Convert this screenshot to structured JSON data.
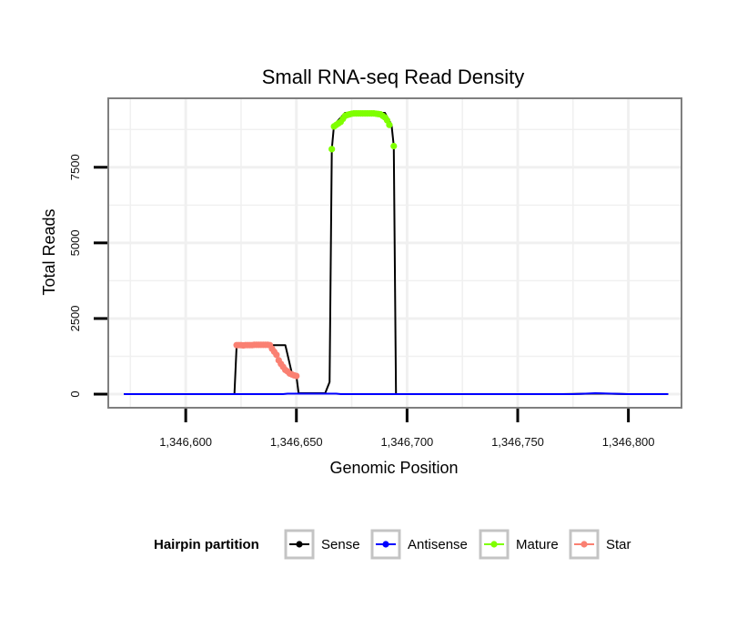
{
  "chart_data": {
    "type": "line",
    "title": "Small RNA-seq Read Density",
    "xlabel": "Genomic Position",
    "ylabel": "Total Reads",
    "xlim": [
      1346565,
      1346824
    ],
    "ylim": [
      -450,
      9780
    ],
    "x_ticks": [
      1346600,
      1346650,
      1346700,
      1346750,
      1346800
    ],
    "x_tick_labels": [
      "1,346,600",
      "1,346,650",
      "1,346,700",
      "1,346,750",
      "1,346,800"
    ],
    "y_ticks": [
      0,
      2500,
      5000,
      7500
    ],
    "y_tick_labels": [
      "0",
      "2500",
      "5000",
      "7500"
    ],
    "grid": true,
    "legend": {
      "title": "Hairpin partition",
      "position": "bottom",
      "items": [
        {
          "label": "Sense",
          "color": "#000000"
        },
        {
          "label": "Antisense",
          "color": "#0000ff"
        },
        {
          "label": "Mature",
          "color": "#7fff00"
        },
        {
          "label": "Star",
          "color": "#fa8072"
        }
      ]
    },
    "series": [
      {
        "name": "Sense",
        "color": "#000000",
        "markers": false,
        "points": [
          [
            1346572,
            0
          ],
          [
            1346622,
            0
          ],
          [
            1346623,
            1620
          ],
          [
            1346645,
            1620
          ],
          [
            1346648,
            680
          ],
          [
            1346650,
            600
          ],
          [
            1346651,
            30
          ],
          [
            1346663,
            30
          ],
          [
            1346665,
            400
          ],
          [
            1346666,
            8100
          ],
          [
            1346667,
            8900
          ],
          [
            1346672,
            9300
          ],
          [
            1346690,
            9300
          ],
          [
            1346693,
            8900
          ],
          [
            1346694,
            8200
          ],
          [
            1346695,
            0
          ],
          [
            1346770,
            0
          ],
          [
            1346787,
            20
          ],
          [
            1346800,
            0
          ],
          [
            1346818,
            0
          ]
        ]
      },
      {
        "name": "Antisense",
        "color": "#0000ff",
        "markers": false,
        "points": [
          [
            1346572,
            0
          ],
          [
            1346644,
            0
          ],
          [
            1346646,
            15
          ],
          [
            1346668,
            15
          ],
          [
            1346670,
            0
          ],
          [
            1346775,
            0
          ],
          [
            1346785,
            30
          ],
          [
            1346800,
            0
          ],
          [
            1346818,
            0
          ]
        ]
      },
      {
        "name": "Mature",
        "color": "#7fff00",
        "markers": true,
        "points": [
          [
            1346666,
            8100
          ],
          [
            1346667,
            8850
          ],
          [
            1346668,
            8900
          ],
          [
            1346669,
            8950
          ],
          [
            1346670,
            9000
          ],
          [
            1346671,
            9100
          ],
          [
            1346672,
            9200
          ],
          [
            1346673,
            9230
          ],
          [
            1346674,
            9250
          ],
          [
            1346675,
            9270
          ],
          [
            1346676,
            9280
          ],
          [
            1346677,
            9280
          ],
          [
            1346678,
            9280
          ],
          [
            1346679,
            9280
          ],
          [
            1346680,
            9280
          ],
          [
            1346681,
            9280
          ],
          [
            1346682,
            9280
          ],
          [
            1346683,
            9280
          ],
          [
            1346684,
            9280
          ],
          [
            1346685,
            9280
          ],
          [
            1346686,
            9270
          ],
          [
            1346687,
            9260
          ],
          [
            1346688,
            9250
          ],
          [
            1346689,
            9200
          ],
          [
            1346690,
            9150
          ],
          [
            1346691,
            9050
          ],
          [
            1346692,
            8900
          ],
          [
            1346694,
            8200
          ]
        ]
      },
      {
        "name": "Star",
        "color": "#fa8072",
        "markers": true,
        "points": [
          [
            1346623,
            1620
          ],
          [
            1346624,
            1620
          ],
          [
            1346625,
            1620
          ],
          [
            1346626,
            1610
          ],
          [
            1346627,
            1620
          ],
          [
            1346628,
            1620
          ],
          [
            1346629,
            1620
          ],
          [
            1346630,
            1620
          ],
          [
            1346631,
            1630
          ],
          [
            1346632,
            1630
          ],
          [
            1346633,
            1630
          ],
          [
            1346634,
            1630
          ],
          [
            1346635,
            1630
          ],
          [
            1346636,
            1630
          ],
          [
            1346637,
            1630
          ],
          [
            1346638,
            1620
          ],
          [
            1346639,
            1500
          ],
          [
            1346640,
            1400
          ],
          [
            1346641,
            1300
          ],
          [
            1346642,
            1120
          ],
          [
            1346643,
            1000
          ],
          [
            1346644,
            900
          ],
          [
            1346645,
            800
          ],
          [
            1346646,
            750
          ],
          [
            1346647,
            680
          ],
          [
            1346648,
            650
          ],
          [
            1346649,
            620
          ],
          [
            1346650,
            600
          ]
        ]
      }
    ]
  }
}
